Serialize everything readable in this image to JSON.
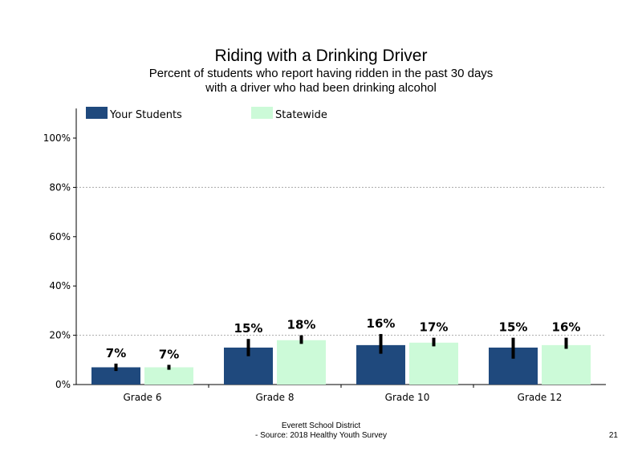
{
  "title": "Riding with a Drinking Driver",
  "subtitle": [
    "Percent of students who report having ridden in the past 30 days",
    "with a driver who had been drinking alcohol"
  ],
  "footer": [
    "Everett School District",
    "- Source: 2018 Healthy  Youth Survey"
  ],
  "page_number": "21",
  "colors": {
    "your_students": "#1f497d",
    "statewide": "#ccfad8",
    "error_bar": "#000000",
    "gridline": "#aaaaaa"
  },
  "chart_data": {
    "type": "bar",
    "categories": [
      "Grade 6",
      "Grade 8",
      "Grade 10",
      "Grade 12"
    ],
    "series": [
      {
        "name": "Your Students",
        "values": [
          7,
          15,
          16,
          15
        ],
        "labels": [
          "7%",
          "15%",
          "16%",
          "15%"
        ],
        "ci_low": [
          5.5,
          11.5,
          12.5,
          10.5
        ],
        "ci_high": [
          8.5,
          18.5,
          20.5,
          19
        ]
      },
      {
        "name": "Statewide",
        "values": [
          7,
          18,
          17,
          16
        ],
        "labels": [
          "7%",
          "18%",
          "17%",
          "16%"
        ],
        "ci_low": [
          6,
          16.5,
          15.5,
          14.5
        ],
        "ci_high": [
          8,
          20,
          19,
          19
        ]
      }
    ],
    "yticks": [
      "0%",
      "20%",
      "40%",
      "60%",
      "80%",
      "100%"
    ],
    "ytick_values": [
      0,
      20,
      40,
      60,
      80,
      100
    ],
    "ylim": [
      0,
      112
    ],
    "grid": true,
    "legend_position": "top-left"
  }
}
